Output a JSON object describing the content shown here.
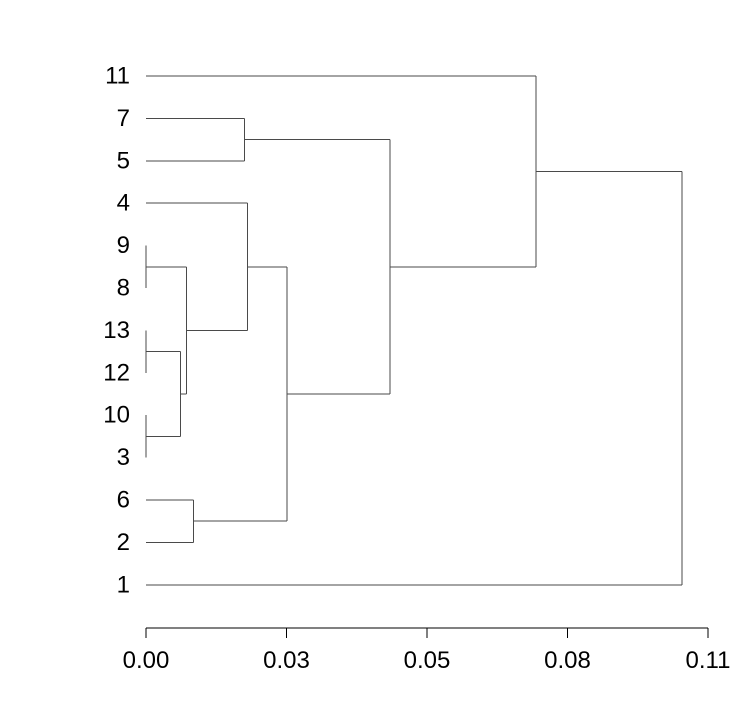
{
  "chart_data": {
    "type": "dendrogram",
    "orientation": "horizontal",
    "leaves_top_to_bottom": [
      "11",
      "7",
      "5",
      "4",
      "9",
      "8",
      "13",
      "12",
      "10",
      "3",
      "6",
      "2",
      "1"
    ],
    "merges": [
      {
        "id": "m_9_8",
        "children": [
          "9",
          "8"
        ],
        "height": 0.0
      },
      {
        "id": "m_13_12",
        "children": [
          "13",
          "12"
        ],
        "height": 0.0
      },
      {
        "id": "m_10_3",
        "children": [
          "10",
          "3"
        ],
        "height": 0.0
      },
      {
        "id": "m_a",
        "children": [
          "m_13_12",
          "m_10_3"
        ],
        "height": 0.0068
      },
      {
        "id": "m_b",
        "children": [
          "m_9_8",
          "m_a"
        ],
        "height": 0.0079
      },
      {
        "id": "m_c",
        "children": [
          "4",
          "m_b"
        ],
        "height": 0.0199
      },
      {
        "id": "m_6_2",
        "children": [
          "6",
          "2"
        ],
        "height": 0.0093
      },
      {
        "id": "m_d",
        "children": [
          "m_c",
          "m_6_2"
        ],
        "height": 0.0276
      },
      {
        "id": "m_7_5",
        "children": [
          "7",
          "5"
        ],
        "height": 0.0193
      },
      {
        "id": "m_e",
        "children": [
          "m_7_5",
          "m_d"
        ],
        "height": 0.0478
      },
      {
        "id": "m_f",
        "children": [
          "11",
          "m_e"
        ],
        "height": 0.0763
      },
      {
        "id": "m_root",
        "children": [
          "m_f",
          "1"
        ],
        "height": 0.1049
      }
    ],
    "x_axis": {
      "range": [
        0.0,
        0.11
      ],
      "ticks": [
        0.0,
        0.0275,
        0.055,
        0.0825,
        0.11
      ],
      "tick_labels": [
        "0.00",
        "0.03",
        "0.05",
        "0.08",
        "0.11"
      ]
    }
  }
}
